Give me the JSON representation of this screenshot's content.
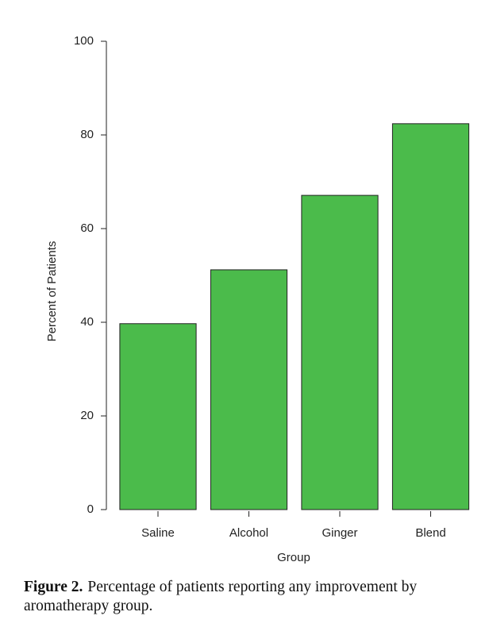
{
  "chart_data": {
    "type": "bar",
    "y_label": "Percent of Patients",
    "x_label": "Group",
    "categories": [
      "Saline",
      "Alcohol",
      "Ginger",
      "Blend"
    ],
    "values": [
      39.7,
      51.2,
      67.1,
      82.4
    ],
    "color": "#4bbb4b",
    "ylim": [
      0,
      100
    ],
    "yticks": [
      0,
      20,
      40,
      60,
      80,
      100
    ],
    "grid": false,
    "caption_label": "Figure 2.",
    "caption": "Percentage of patients reporting any improvement by aromatherapy group."
  }
}
